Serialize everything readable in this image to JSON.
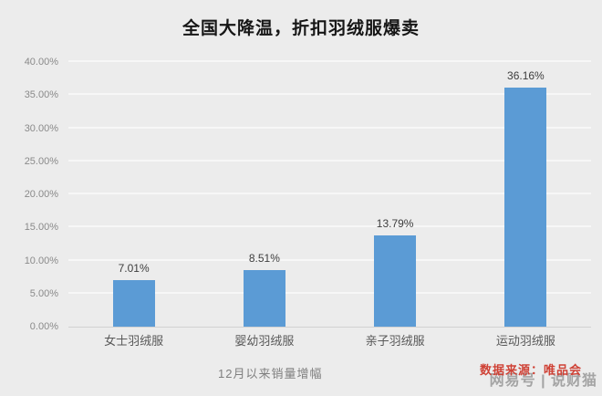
{
  "chart_data": {
    "type": "bar",
    "title": "全国大降温，折扣羽绒服爆卖",
    "categories": [
      "女士羽绒服",
      "婴幼羽绒服",
      "亲子羽绒服",
      "运动羽绒服"
    ],
    "values": [
      7.01,
      8.51,
      13.79,
      36.16
    ],
    "value_labels": [
      "7.01%",
      "8.51%",
      "13.79%",
      "36.16%"
    ],
    "xlabel": "12月以来销量增幅",
    "ylabel": "",
    "ylim": [
      0,
      40
    ],
    "ytick_step": 5,
    "ytick_labels": [
      "0.00%",
      "5.00%",
      "10.00%",
      "15.00%",
      "20.00%",
      "25.00%",
      "30.00%",
      "35.00%",
      "40.00%"
    ],
    "grid": true,
    "legend": false,
    "bar_color": "#5b9bd5",
    "background_color": "#ececec"
  },
  "footer": {
    "note": "12月以来销量增幅",
    "source": "数据来源：唯品会",
    "source_color": "#cf4236"
  },
  "watermark": {
    "text": "网易号 | 说财猫"
  }
}
